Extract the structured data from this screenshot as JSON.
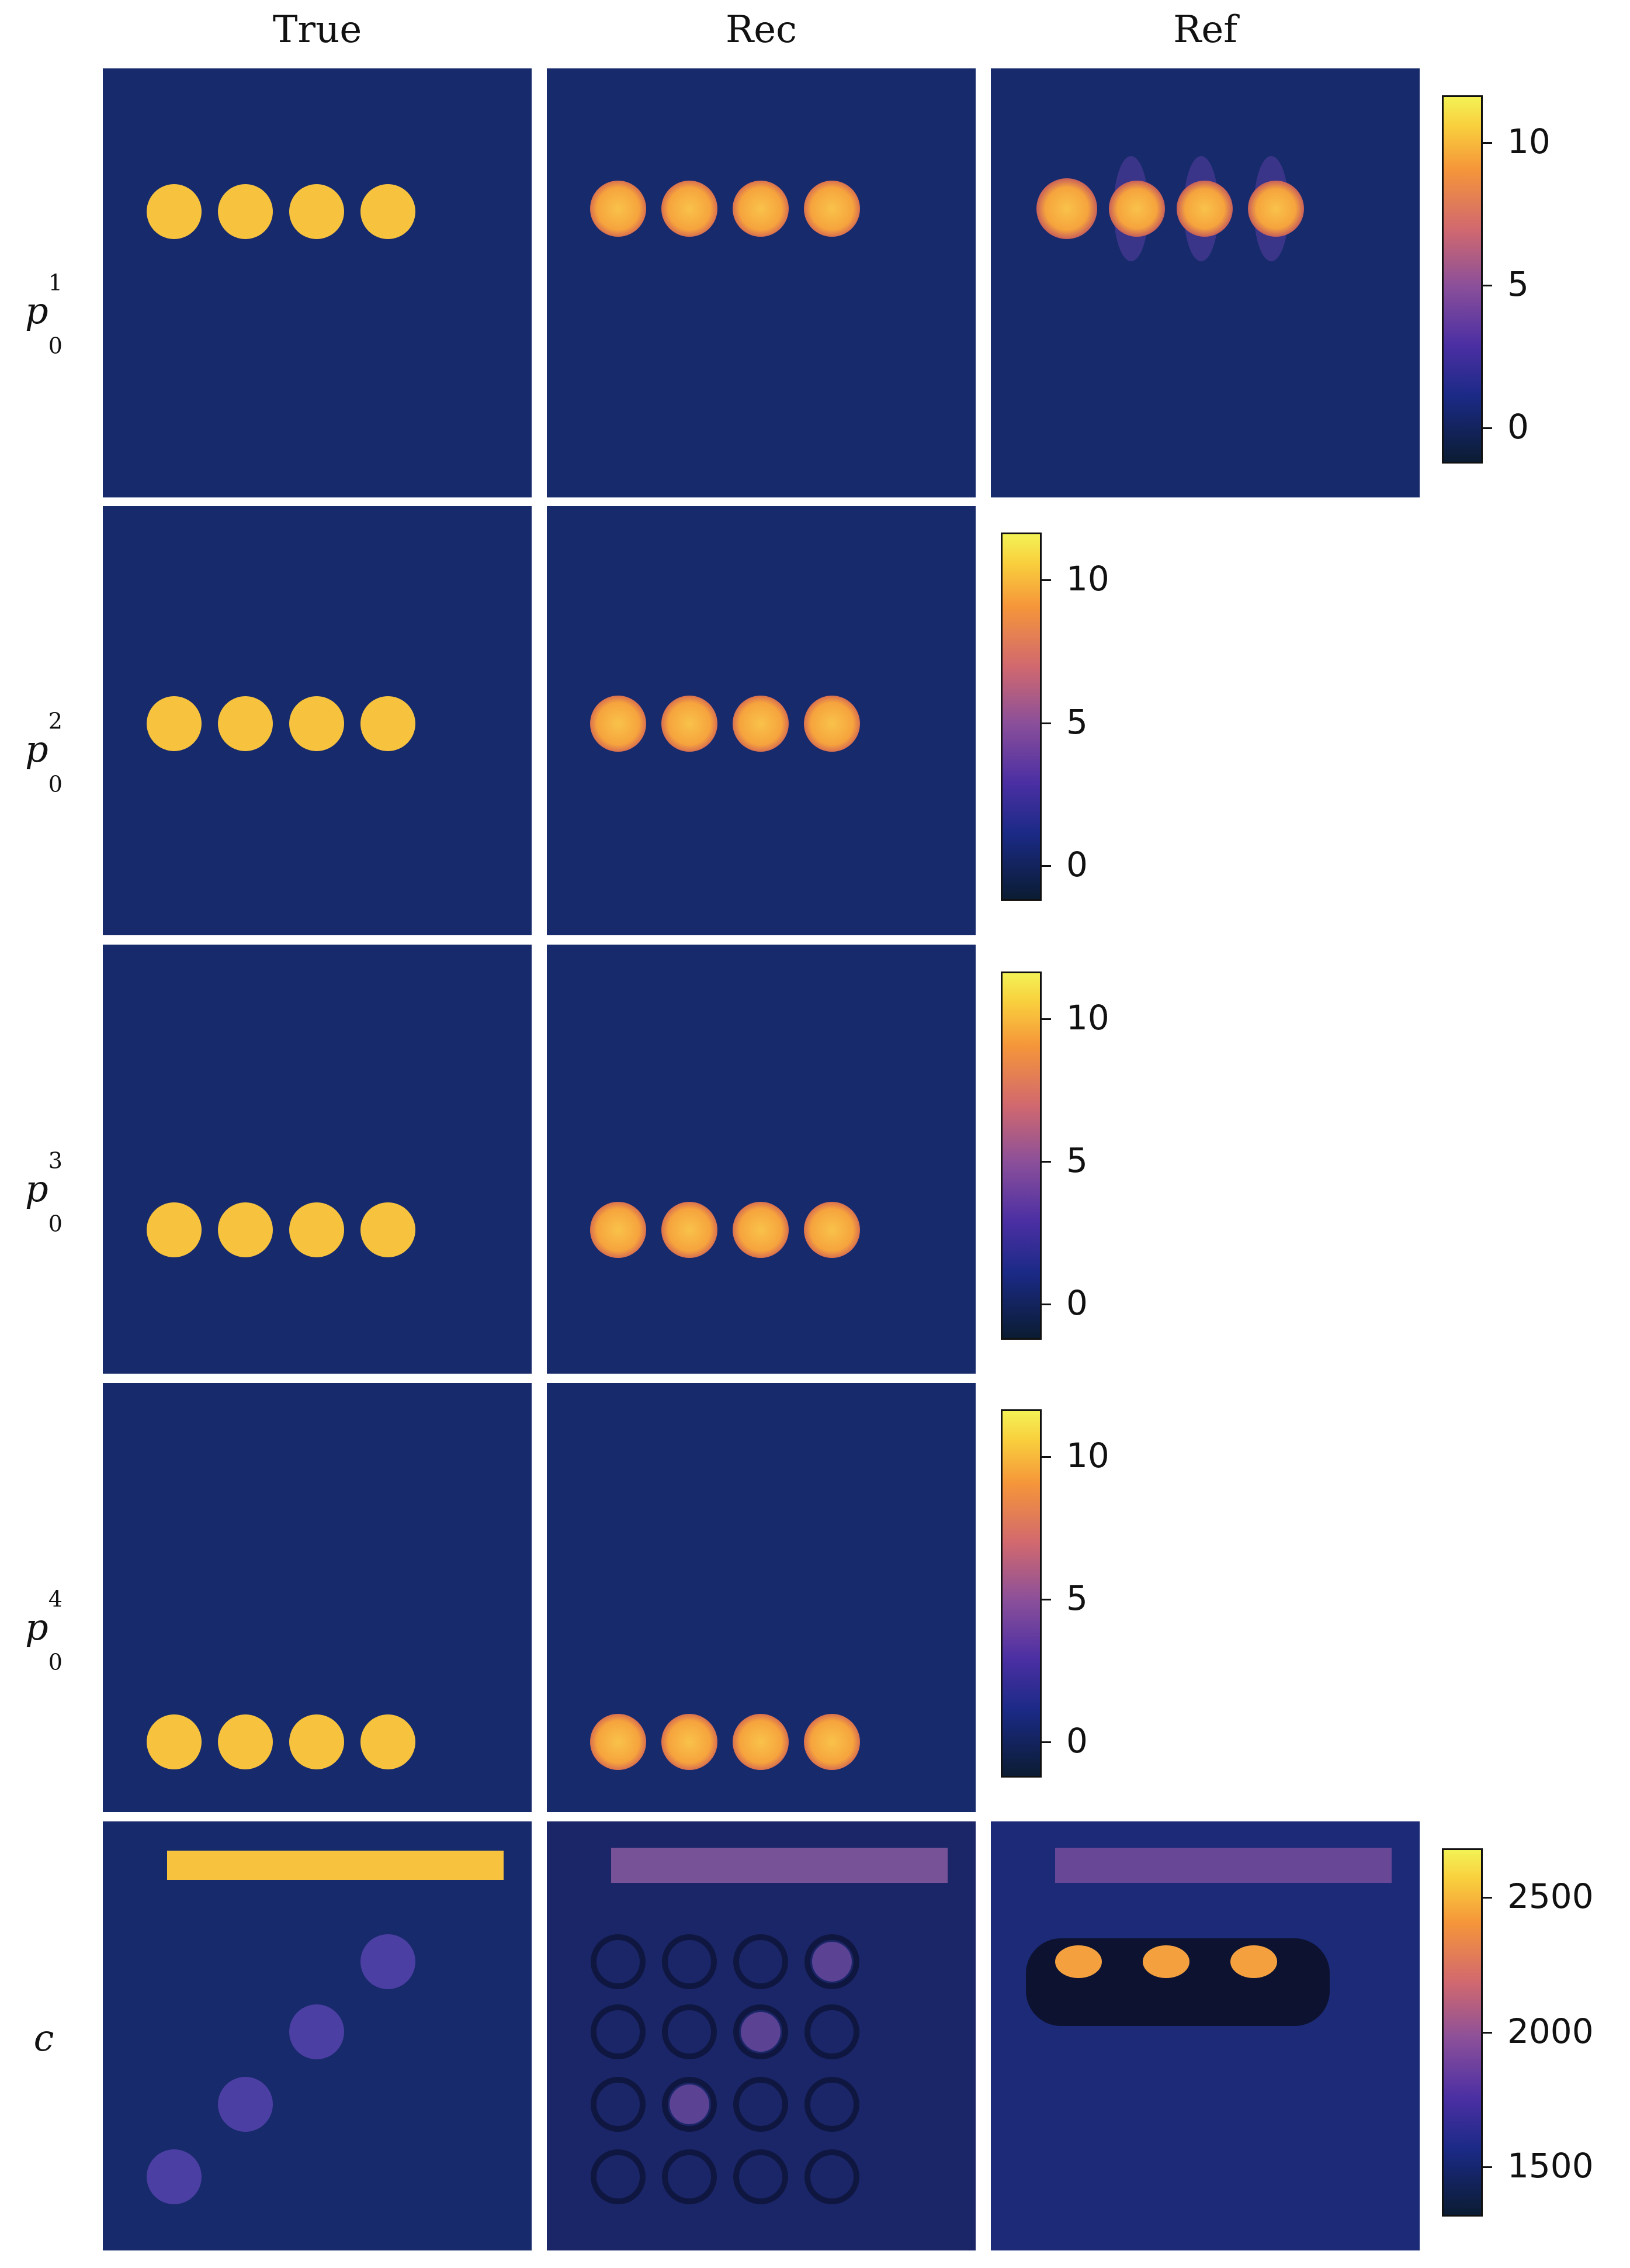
{
  "columns": [
    "True",
    "Rec",
    "Ref"
  ],
  "rows": [
    {
      "symbol": "p",
      "sup": "1",
      "sub": "0"
    },
    {
      "symbol": "p",
      "sup": "2",
      "sub": "0"
    },
    {
      "symbol": "p",
      "sup": "3",
      "sub": "0"
    },
    {
      "symbol": "p",
      "sup": "4",
      "sub": "0"
    },
    {
      "symbol": "c",
      "sup": "",
      "sub": ""
    }
  ],
  "colorbars": {
    "pressure": {
      "ticks": [
        "10",
        "5",
        "0"
      ]
    },
    "speed": {
      "ticks": [
        "2500",
        "2000",
        "1500"
      ]
    }
  },
  "colors": {
    "background": "#172a6b",
    "inclusion": "#f7c23e",
    "speed_inclusion": "#4c3fa3",
    "rec_glow": "#f9a93a"
  }
}
